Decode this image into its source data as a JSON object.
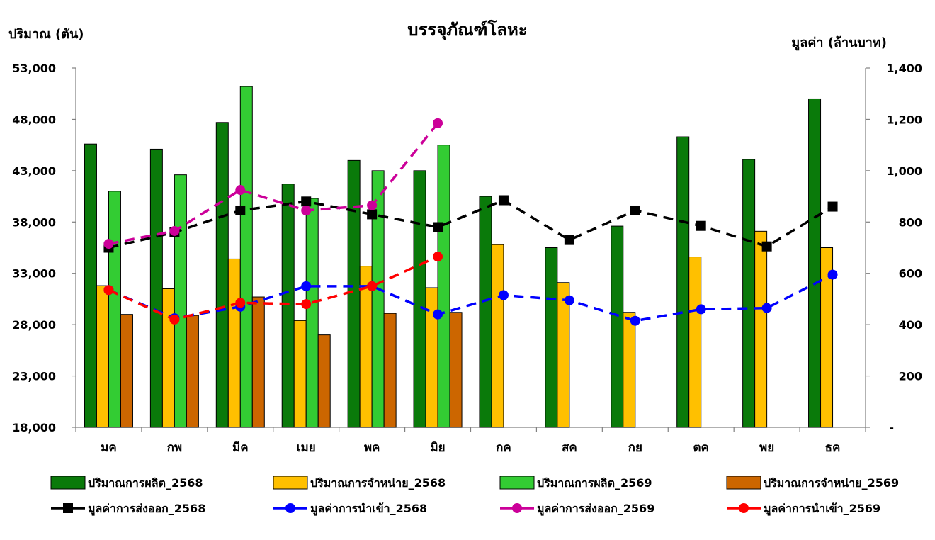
{
  "chart_data": {
    "type": "bar",
    "title": "บรรจุภัณฑ์โลหะ",
    "ylabel_left": "ปริมาณ (ตัน)",
    "ylabel_right": "มูลค่า (ล้านบาท)",
    "categories": [
      "มค",
      "กพ",
      "มีค",
      "เมย",
      "พค",
      "มิย",
      "กค",
      "สค",
      "กย",
      "ตค",
      "พย",
      "ธค"
    ],
    "ylim_left": [
      18000,
      53000
    ],
    "ylim_right": [
      0,
      1400
    ],
    "yticks_left": [
      "18,000",
      "23,000",
      "28,000",
      "33,000",
      "38,000",
      "43,000",
      "48,000",
      "53,000"
    ],
    "yticks_right": [
      "-",
      "200",
      "400",
      "600",
      "800",
      "1,000",
      "1,200",
      "1,400"
    ],
    "grid": false,
    "legend_position": "bottom",
    "bar_series": [
      {
        "name": "ปริมาณการผลิต_2568",
        "color": "#0a7a0a",
        "values": [
          45600,
          45100,
          47700,
          41700,
          44000,
          43000,
          40500,
          35500,
          37600,
          46300,
          44100,
          50000
        ]
      },
      {
        "name": "ปริมาณการจำหน่าย_2568",
        "color": "#ffc000",
        "values": [
          31800,
          31500,
          34400,
          28400,
          33700,
          31600,
          35800,
          32100,
          29200,
          34600,
          37100,
          35500
        ]
      },
      {
        "name": "ปริมาณการผลิต_2569",
        "color": "#33cc33",
        "values": [
          41000,
          42600,
          51200,
          40300,
          43000,
          45500,
          null,
          null,
          null,
          null,
          null,
          null
        ]
      },
      {
        "name": "ปริมาณการจำหน่าย_2569",
        "color": "#cc6600",
        "values": [
          29000,
          28900,
          30700,
          27000,
          29100,
          29200,
          null,
          null,
          null,
          null,
          null,
          null
        ]
      }
    ],
    "line_series": [
      {
        "name": "มูลค่าการส่งออก_2568",
        "color": "#000000",
        "marker": "square",
        "values": [
          700,
          760,
          845,
          880,
          830,
          780,
          885,
          730,
          845,
          785,
          705,
          860
        ]
      },
      {
        "name": "มูลค่าการนำเข้า_2568",
        "color": "#0000ff",
        "marker": "circle",
        "values": [
          535,
          425,
          470,
          550,
          550,
          440,
          515,
          495,
          415,
          460,
          465,
          595
        ]
      },
      {
        "name": "มูลค่าการส่งออก_2569",
        "color": "#cc0099",
        "marker": "circle",
        "values": [
          715,
          765,
          925,
          845,
          865,
          1185,
          null,
          null,
          null,
          null,
          null,
          null
        ]
      },
      {
        "name": "มูลค่าการนำเข้า_2569",
        "color": "#ff0000",
        "marker": "circle",
        "values": [
          535,
          420,
          485,
          480,
          550,
          665,
          null,
          null,
          null,
          null,
          null,
          null
        ]
      }
    ]
  }
}
